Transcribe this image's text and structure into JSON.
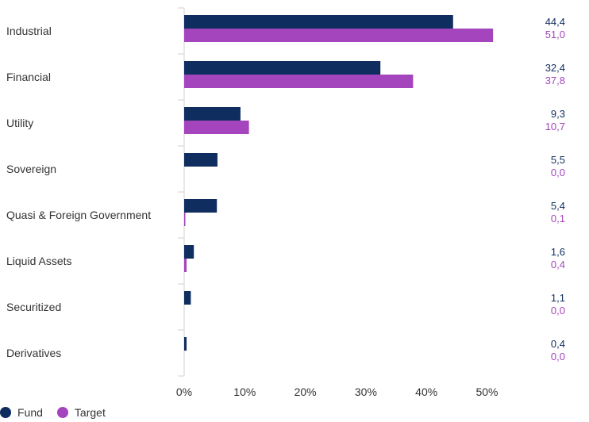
{
  "chart_data": {
    "type": "bar",
    "orientation": "horizontal",
    "categories": [
      "Industrial",
      "Financial",
      "Utility",
      "Sovereign",
      "Quasi & Foreign Government",
      "Liquid Assets",
      "Securitized",
      "Derivatives"
    ],
    "series": [
      {
        "name": "Fund",
        "color": "#0f2d5e",
        "values": [
          44.4,
          32.4,
          9.3,
          5.5,
          5.4,
          1.6,
          1.1,
          0.4
        ],
        "labels": [
          "44,4",
          "32,4",
          "9,3",
          "5,5",
          "5,4",
          "1,6",
          "1,1",
          "0,4"
        ]
      },
      {
        "name": "Target",
        "color": "#a545bd",
        "values": [
          51.0,
          37.8,
          10.7,
          0.0,
          0.1,
          0.4,
          0.0,
          0.0
        ],
        "labels": [
          "51,0",
          "37,8",
          "10,7",
          "0,0",
          "0,1",
          "0,4",
          "0,0",
          "0,0"
        ]
      }
    ],
    "xlim": [
      0,
      60
    ],
    "xticks": [
      0,
      10,
      20,
      30,
      40,
      50
    ],
    "xtick_labels": [
      "0%",
      "10%",
      "20%",
      "30%",
      "40%",
      "50%"
    ],
    "title": "",
    "xlabel": "",
    "ylabel": "",
    "grid": false,
    "legend": "bottom-left"
  },
  "legend": {
    "fund_label": "Fund",
    "target_label": "Target"
  }
}
